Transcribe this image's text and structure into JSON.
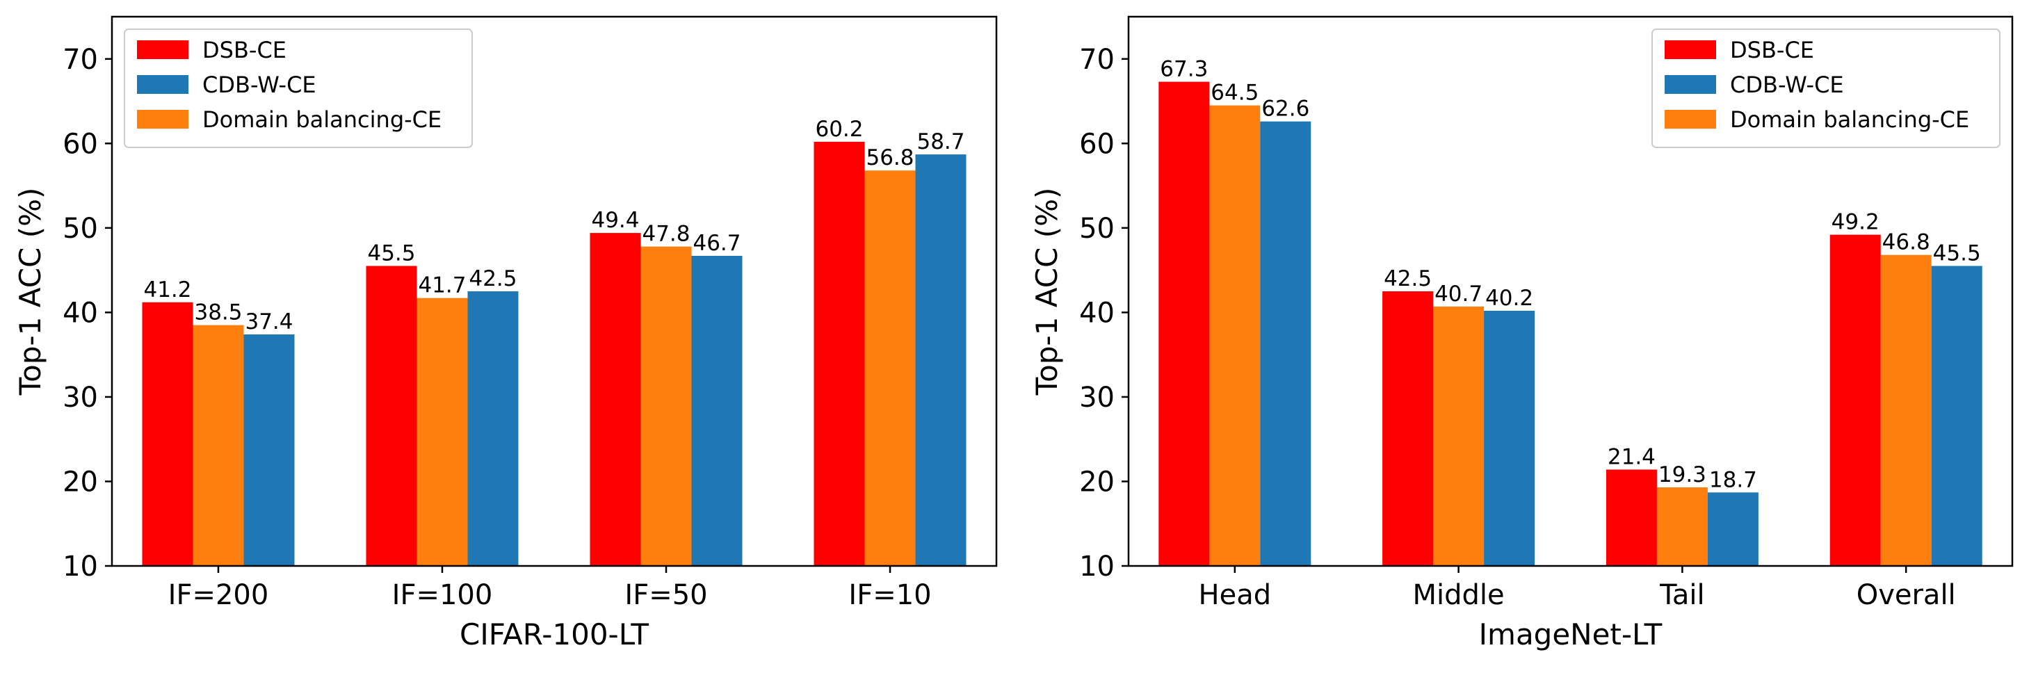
{
  "chart_data": [
    {
      "type": "bar",
      "title": "",
      "xlabel": "CIFAR-100-LT",
      "ylabel": "Top-1 ACC (%)",
      "ylim": [
        10,
        75
      ],
      "yticks": [
        "10",
        "20",
        "30",
        "40",
        "50",
        "60",
        "70"
      ],
      "grid": false,
      "legend_position": "top-left",
      "categories": [
        "IF=200",
        "IF=100",
        "IF=50",
        "IF=10"
      ],
      "series": [
        {
          "name": "DSB-CE",
          "color": "#ff0000",
          "values": [
            41.2,
            45.5,
            49.4,
            60.2
          ]
        },
        {
          "name": "Domain balancing-CE",
          "color": "#ff7f0e",
          "values": [
            38.5,
            41.7,
            47.8,
            56.8
          ]
        },
        {
          "name": "CDB-W-CE",
          "color": "#1f77b4",
          "values": [
            37.4,
            42.5,
            46.7,
            58.7
          ]
        }
      ],
      "data_labels": [
        [
          "41.2",
          "45.5",
          "49.4",
          "60.2"
        ],
        [
          "38.5",
          "41.7",
          "47.8",
          "56.8"
        ],
        [
          "37.4",
          "42.5",
          "46.7",
          "58.7"
        ]
      ],
      "legend_order": [
        0,
        2,
        1
      ]
    },
    {
      "type": "bar",
      "title": "",
      "xlabel": "ImageNet-LT",
      "ylabel": "Top-1 ACC (%)",
      "ylim": [
        10,
        75
      ],
      "yticks": [
        "10",
        "20",
        "30",
        "40",
        "50",
        "60",
        "70"
      ],
      "grid": false,
      "legend_position": "top-right",
      "categories": [
        "Head",
        "Middle",
        "Tail",
        "Overall"
      ],
      "series": [
        {
          "name": "DSB-CE",
          "color": "#ff0000",
          "values": [
            67.3,
            42.5,
            21.4,
            49.2
          ]
        },
        {
          "name": "Domain balancing-CE",
          "color": "#ff7f0e",
          "values": [
            64.5,
            40.7,
            19.3,
            46.8
          ]
        },
        {
          "name": "CDB-W-CE",
          "color": "#1f77b4",
          "values": [
            62.6,
            40.2,
            18.7,
            45.5
          ]
        }
      ],
      "data_labels": [
        [
          "67.3",
          "42.5",
          "21.4",
          "49.2"
        ],
        [
          "64.5",
          "40.7",
          "19.3",
          "46.8"
        ],
        [
          "62.6",
          "40.2",
          "18.7",
          "45.5"
        ]
      ],
      "legend_order": [
        0,
        2,
        1
      ]
    }
  ]
}
